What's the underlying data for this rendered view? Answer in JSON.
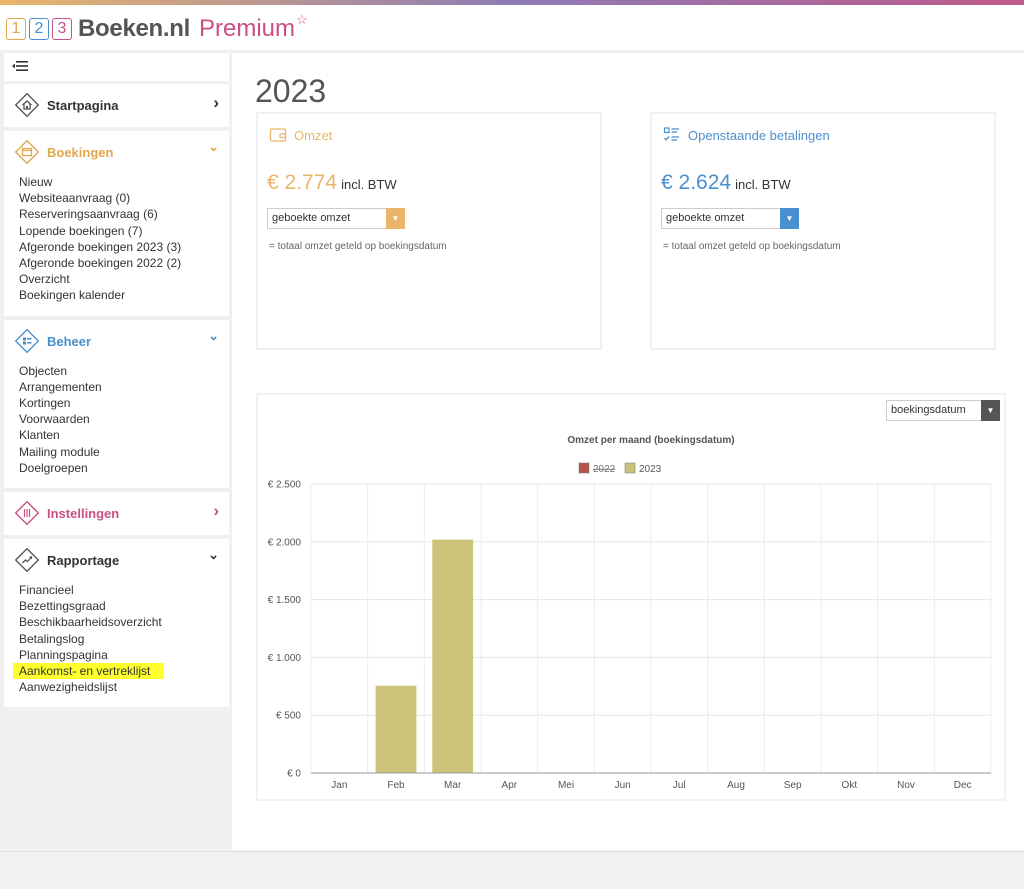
{
  "header": {
    "logo_num1": "1",
    "logo_num2": "2",
    "logo_num3": "3",
    "brand": "Boeken.nl",
    "premium": "Premium",
    "star": "☆"
  },
  "sidebar": {
    "startpagina": {
      "title": "Startpagina",
      "chevron": "›"
    },
    "boekingen": {
      "title": "Boekingen",
      "chevron": "⌄",
      "color": "#e3a64d",
      "items": [
        "Nieuw",
        "Websiteaanvraag (0)",
        "Reserveringsaanvraag (6)",
        "Lopende boekingen (7)",
        "Afgeronde boekingen 2023 (3)",
        "Afgeronde boekingen 2022 (2)",
        "Overzicht",
        "Boekingen kalender"
      ]
    },
    "beheer": {
      "title": "Beheer",
      "chevron": "⌄",
      "color": "#4a8fcf",
      "items": [
        "Objecten",
        "Arrangementen",
        "Kortingen",
        "Voorwaarden",
        "Klanten",
        "Mailing module",
        "Doelgroepen"
      ]
    },
    "instellingen": {
      "title": "Instellingen",
      "chevron": "›",
      "color": "#c94f84"
    },
    "rapportage": {
      "title": "Rapportage",
      "chevron": "⌄",
      "items": [
        "Financieel",
        "Bezettingsgraad",
        "Beschikbaarheidsoverzicht",
        "Betalingslog",
        "Planningspagina",
        "Aankomst- en vertreklijst",
        "Aanwezigheidslijst"
      ]
    }
  },
  "main": {
    "year": "2023",
    "omzet": {
      "title": "Omzet",
      "amount": "€ 2.774",
      "btw": "incl. BTW",
      "select": "geboekte omzet",
      "note": "= totaal omzet geteld op boekingsdatum",
      "color": "#e9b56b"
    },
    "openstaand": {
      "title": "Openstaande betalingen",
      "amount": "€ 2.624",
      "btw": "incl. BTW",
      "select": "geboekte omzet",
      "note": "= totaal omzet geteld op boekingsdatum",
      "color": "#4a8fcf"
    },
    "chart_select": "boekingsdatum"
  },
  "chart_data": {
    "type": "bar",
    "title": "Omzet per maand (boekingsdatum)",
    "categories": [
      "Jan",
      "Feb",
      "Mar",
      "Apr",
      "Mei",
      "Jun",
      "Jul",
      "Aug",
      "Sep",
      "Okt",
      "Nov",
      "Dec"
    ],
    "series": [
      {
        "name": "2022",
        "values": [
          0,
          0,
          0,
          0,
          0,
          0,
          0,
          0,
          0,
          0,
          0,
          0
        ],
        "color": "#b5524a",
        "hidden": true
      },
      {
        "name": "2023",
        "values": [
          0,
          755,
          2019,
          0,
          0,
          0,
          0,
          0,
          0,
          0,
          0,
          0
        ],
        "color": "#cbc478"
      }
    ],
    "ylim": [
      0,
      2500
    ],
    "yticks": [
      0,
      500,
      1000,
      1500,
      2000,
      2500
    ],
    "ytick_labels": [
      "€ 0",
      "€ 500",
      "€ 1.000",
      "€ 1.500",
      "€ 2.000",
      "€ 2.500"
    ],
    "grid": true,
    "legend": "top-center"
  }
}
